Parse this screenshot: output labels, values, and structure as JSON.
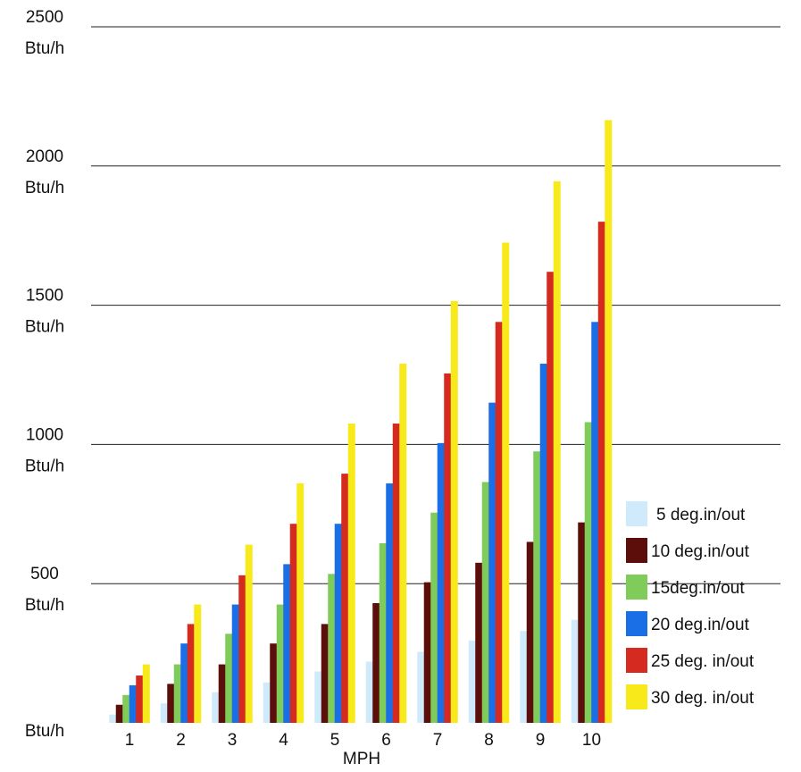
{
  "chart_data": {
    "type": "bar",
    "xlabel": "MPH",
    "categories": [
      "1",
      "2",
      "3",
      "4",
      "5",
      "6",
      "7",
      "8",
      "9",
      "10"
    ],
    "y_ticks": [
      {
        "value": 2500,
        "line1": "2500",
        "line2": "Btu/h"
      },
      {
        "value": 2000,
        "line1": "2000",
        "line2": "Btu/h"
      },
      {
        "value": 1500,
        "line1": "1500",
        "line2": "Btu/h"
      },
      {
        "value": 1000,
        "line1": "1000",
        "line2": "Btu/h"
      },
      {
        "value": 500,
        "line1": "500",
        "line2": "Btu/h"
      },
      {
        "value": 0,
        "line1": "",
        "line2": "Btu/h"
      }
    ],
    "ylim": [
      0,
      2500
    ],
    "grid": true,
    "legend_position": "right",
    "series": [
      {
        "name": "5 deg.in/out",
        "color": "#cfeafb",
        "values": [
          30,
          70,
          110,
          145,
          185,
          220,
          255,
          295,
          330,
          370
        ]
      },
      {
        "name": "10 deg.in/out",
        "color": "#5c0f0a",
        "values": [
          65,
          140,
          210,
          285,
          355,
          430,
          505,
          575,
          650,
          720
        ]
      },
      {
        "name": "15deg.in/out",
        "color": "#7fcc5a",
        "values": [
          100,
          210,
          320,
          425,
          535,
          645,
          755,
          865,
          975,
          1080
        ]
      },
      {
        "name": "20 deg.in/out",
        "color": "#1a6fe6",
        "values": [
          135,
          285,
          425,
          570,
          715,
          860,
          1005,
          1150,
          1290,
          1440
        ]
      },
      {
        "name": "25 deg. in/out",
        "color": "#d42a1f",
        "values": [
          170,
          355,
          530,
          715,
          895,
          1075,
          1255,
          1440,
          1620,
          1800
        ]
      },
      {
        "name": "30 deg. in/out",
        "color": "#f7e91a",
        "values": [
          210,
          425,
          640,
          860,
          1075,
          1290,
          1515,
          1725,
          1945,
          2165
        ]
      }
    ]
  }
}
